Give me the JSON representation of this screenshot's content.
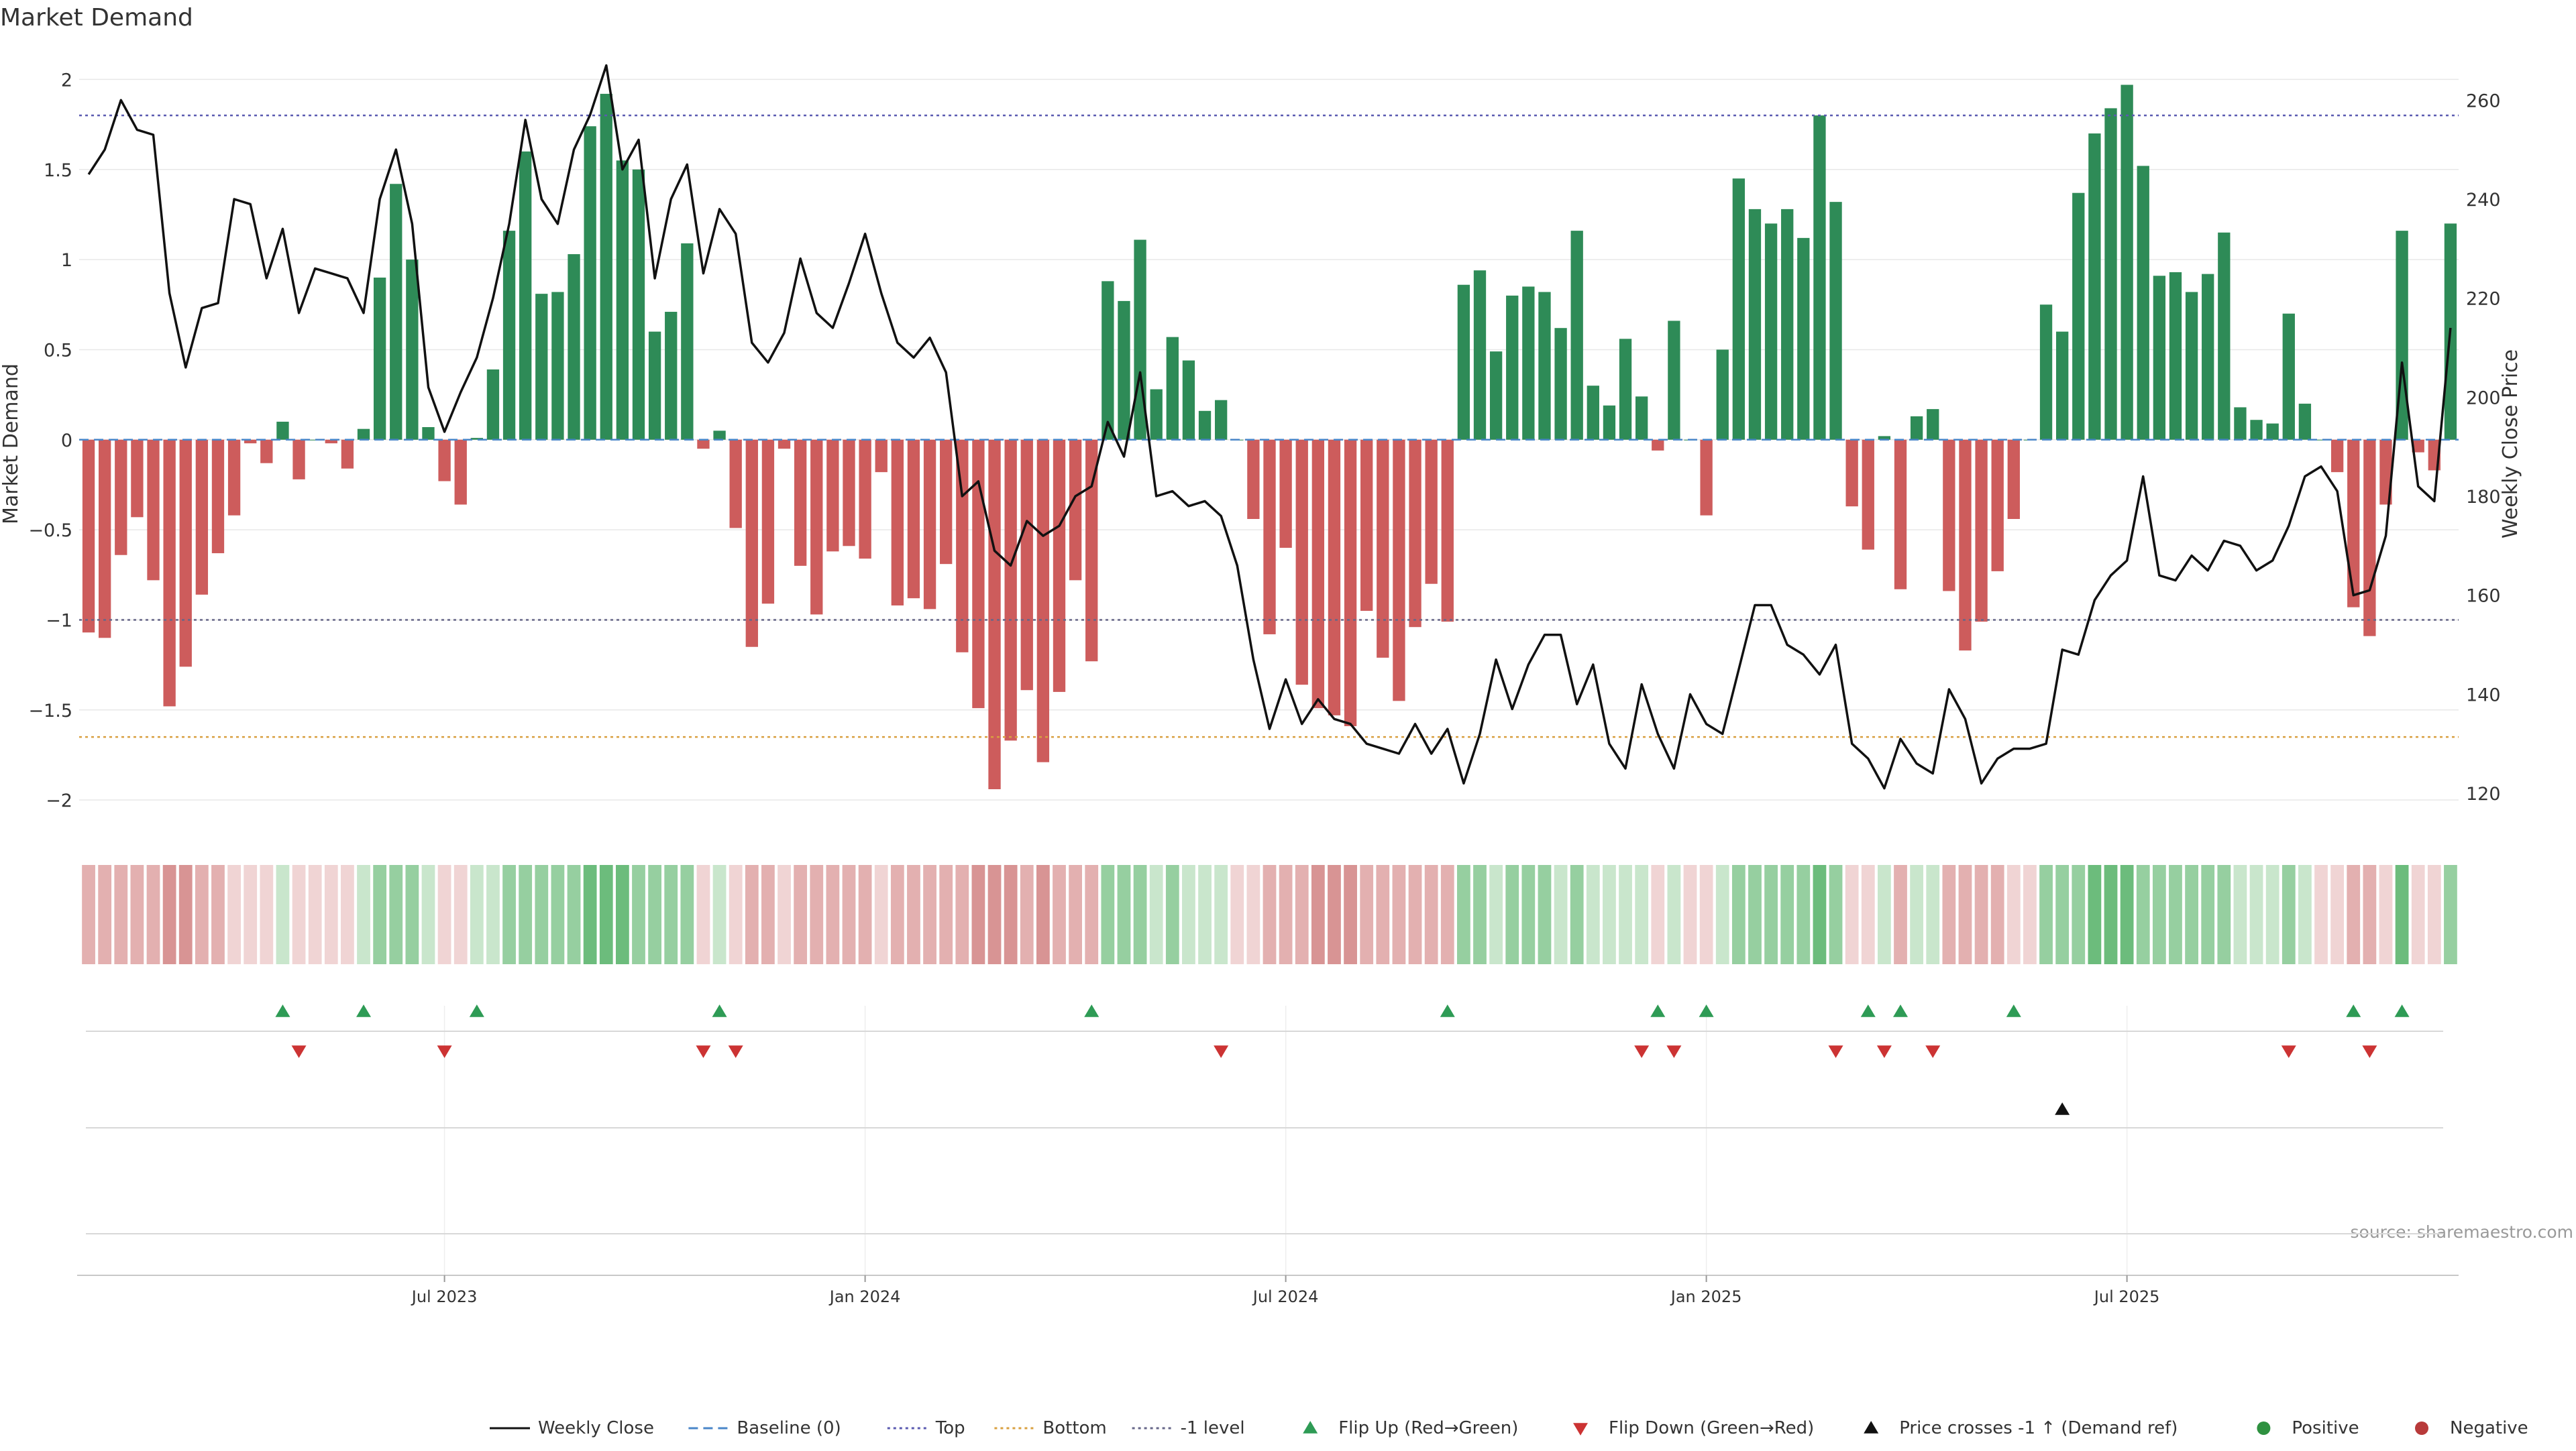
{
  "chart_data": {
    "type": "bar",
    "title": "Market Demand",
    "xlabel": "",
    "ylabel": "Market Demand",
    "y2label": "Weekly Close Price",
    "ylim": [
      -2.1,
      2.05
    ],
    "y2lim": [
      115,
      266
    ],
    "yticks": [
      -2,
      -1.5,
      -1,
      -0.5,
      0,
      0.5,
      1,
      1.5,
      2
    ],
    "yticklabels": [
      "−2",
      "−1.5",
      "−1",
      "−0.5",
      "0",
      "0.5",
      "1",
      "1.5",
      "2"
    ],
    "y2ticks": [
      120,
      140,
      160,
      180,
      200,
      220,
      240,
      260
    ],
    "y2ticklabels": [
      "120",
      "140",
      "160",
      "180",
      "200",
      "220",
      "240",
      "260"
    ],
    "xticks": [
      {
        "index": 22.5,
        "label": "Jul 2023"
      },
      {
        "index": 48.5,
        "label": "Jan 2024"
      },
      {
        "index": 74.5,
        "label": "Jul 2024"
      },
      {
        "index": 100.5,
        "label": "Jan 2025"
      },
      {
        "index": 126.5,
        "label": "Jul 2025"
      }
    ],
    "levels": {
      "baseline": 0,
      "top": 1.8,
      "bottom": -1.65,
      "minus_one": -1
    },
    "demand": [
      -1.07,
      -1.1,
      -0.64,
      -0.43,
      -0.78,
      -1.48,
      -1.26,
      -0.86,
      -0.63,
      -0.42,
      -0.02,
      -0.13,
      0.1,
      -0.22,
      0,
      -0.02,
      -0.16,
      0.06,
      0.9,
      1.42,
      1,
      0.07,
      -0.23,
      -0.36,
      0.01,
      0.39,
      1.16,
      1.6,
      0.81,
      0.82,
      1.03,
      1.74,
      1.92,
      1.55,
      1.5,
      0.6,
      0.71,
      1.09,
      -0.05,
      0.05,
      -0.49,
      -1.15,
      -0.91,
      -0.05,
      -0.7,
      -0.97,
      -0.62,
      -0.59,
      -0.66,
      -0.18,
      -0.92,
      -0.88,
      -0.94,
      -0.69,
      -1.18,
      -1.49,
      -1.94,
      -1.67,
      -1.39,
      -1.79,
      -1.4,
      -0.78,
      -1.23,
      0.88,
      0.77,
      1.11,
      0.28,
      0.57,
      0.44,
      0.16,
      0.22,
      0,
      -0.44,
      -1.08,
      -0.6,
      -1.36,
      -1.49,
      -1.53,
      -1.59,
      -0.95,
      -1.21,
      -1.45,
      -1.04,
      -0.8,
      -1.01,
      0.86,
      0.94,
      0.49,
      0.8,
      0.85,
      0.82,
      0.62,
      1.16,
      0.3,
      0.19,
      0.56,
      0.24,
      -0.06,
      0.66,
      0,
      -0.42,
      0.5,
      1.45,
      1.28,
      1.2,
      1.28,
      1.12,
      1.8,
      1.32,
      -0.37,
      -0.61,
      0.02,
      -0.83,
      0.13,
      0.17,
      -0.84,
      -1.17,
      -1.01,
      -0.73,
      -0.44,
      0,
      0.75,
      0.6,
      1.37,
      1.7,
      1.84,
      1.97,
      1.52,
      0.91,
      0.93,
      0.82,
      0.92,
      1.15,
      0.18,
      0.11,
      0.09,
      0.7,
      0.2,
      0,
      -0.18,
      -0.93,
      -1.09,
      -0.36,
      1.16,
      -0.07,
      -0.17,
      1.2
    ],
    "weekly_close": [
      245,
      250,
      260,
      254,
      253,
      221,
      206,
      218,
      219,
      240,
      239,
      224,
      234,
      217,
      226,
      225,
      224,
      217,
      240,
      250,
      235,
      202,
      193,
      201,
      208,
      220,
      235,
      256,
      240,
      235,
      250,
      257,
      267,
      246,
      252,
      224,
      240,
      247,
      225,
      238,
      233,
      211,
      207,
      213,
      228,
      217,
      214,
      223,
      233,
      221,
      211,
      208,
      212,
      205,
      180,
      183,
      169,
      166,
      175,
      172,
      174,
      180,
      182,
      195,
      188,
      205,
      180,
      181,
      178,
      179,
      176,
      166,
      147,
      133,
      143,
      134,
      139,
      135,
      134,
      130,
      129,
      128,
      134,
      128,
      133,
      122,
      132,
      147,
      137,
      146,
      152,
      152,
      138,
      146,
      130,
      125,
      142,
      132,
      125,
      140,
      134,
      132,
      145,
      158,
      158,
      150,
      148,
      144,
      150,
      130,
      127,
      121,
      131,
      126,
      124,
      141,
      135,
      122,
      127,
      129,
      129,
      130,
      149,
      148,
      159,
      164,
      167,
      184,
      164,
      163,
      168,
      165,
      171,
      170,
      165,
      167,
      174,
      184,
      186,
      181,
      160,
      161,
      172,
      207,
      182,
      179,
      214
    ],
    "regime_strip": [
      -2,
      -2,
      -2,
      -2,
      -2,
      -3,
      -3,
      -2,
      -2,
      -1,
      -1,
      -1,
      1,
      -1,
      -1,
      -1,
      -1,
      1,
      2,
      2,
      2,
      1,
      -1,
      -1,
      1,
      1,
      2,
      2,
      2,
      2,
      2,
      3,
      3,
      3,
      2,
      2,
      2,
      2,
      -1,
      1,
      -1,
      -2,
      -2,
      -1,
      -2,
      -2,
      -2,
      -2,
      -2,
      -1,
      -2,
      -2,
      -2,
      -2,
      -2,
      -3,
      -3,
      -3,
      -2,
      -3,
      -2,
      -2,
      -2,
      2,
      2,
      2,
      1,
      2,
      1,
      1,
      1,
      -1,
      -1,
      -2,
      -2,
      -2,
      -3,
      -3,
      -3,
      -2,
      -2,
      -2,
      -2,
      -2,
      -2,
      2,
      2,
      1,
      2,
      2,
      2,
      1,
      2,
      1,
      1,
      1,
      1,
      -1,
      1,
      -1,
      -1,
      1,
      2,
      2,
      2,
      2,
      2,
      3,
      2,
      -1,
      -1,
      1,
      -2,
      1,
      1,
      -2,
      -2,
      -2,
      -2,
      -1,
      -1,
      2,
      2,
      2,
      3,
      3,
      3,
      2,
      2,
      2,
      2,
      2,
      2,
      1,
      1,
      1,
      2,
      1,
      -1,
      -1,
      -2,
      -2,
      -1,
      3,
      -1,
      -1,
      2
    ],
    "flip_up": [
      12,
      17,
      24,
      39,
      62,
      84,
      97,
      100,
      110,
      112,
      119,
      140,
      143
    ],
    "flip_down": [
      13,
      22,
      38,
      40,
      70,
      96,
      98,
      108,
      111,
      114,
      136,
      141
    ],
    "price_cross_up": [
      122
    ],
    "legend": [
      {
        "label": "Weekly Close",
        "kind": "line",
        "color": "#111111"
      },
      {
        "label": "Baseline (0)",
        "kind": "dash",
        "color": "#4a86c8"
      },
      {
        "label": "Top",
        "kind": "dot",
        "color": "#5a5ab0"
      },
      {
        "label": "Bottom",
        "kind": "dot",
        "color": "#d9a040"
      },
      {
        "label": "-1 level",
        "kind": "dot",
        "color": "#666688"
      },
      {
        "label": "Flip Up (Red→Green)",
        "kind": "tri-up",
        "color": "#2e9b55"
      },
      {
        "label": "Flip Down (Green→Red)",
        "kind": "tri-down",
        "color": "#cc3333"
      },
      {
        "label": "Price crosses -1 ↑ (Demand ref)",
        "kind": "tri-up",
        "color": "#111111"
      },
      {
        "label": "Positive",
        "kind": "circle",
        "color": "#2e9140"
      },
      {
        "label": "Negative",
        "kind": "circle",
        "color": "#b83a3a"
      }
    ],
    "colors": {
      "pos_bar": "#2e8b57",
      "neg_bar": "#cd5c5c",
      "price_line": "#111111",
      "grid": "#e8e8e8",
      "strip_pos": [
        "#c9e6cc",
        "#96cfa0",
        "#6cbc7c",
        "#3fa352"
      ],
      "strip_neg": [
        "#f0d4d4",
        "#e3b0b0",
        "#d89494",
        "#c9706f"
      ]
    },
    "source": "source: sharemaestro.com"
  }
}
